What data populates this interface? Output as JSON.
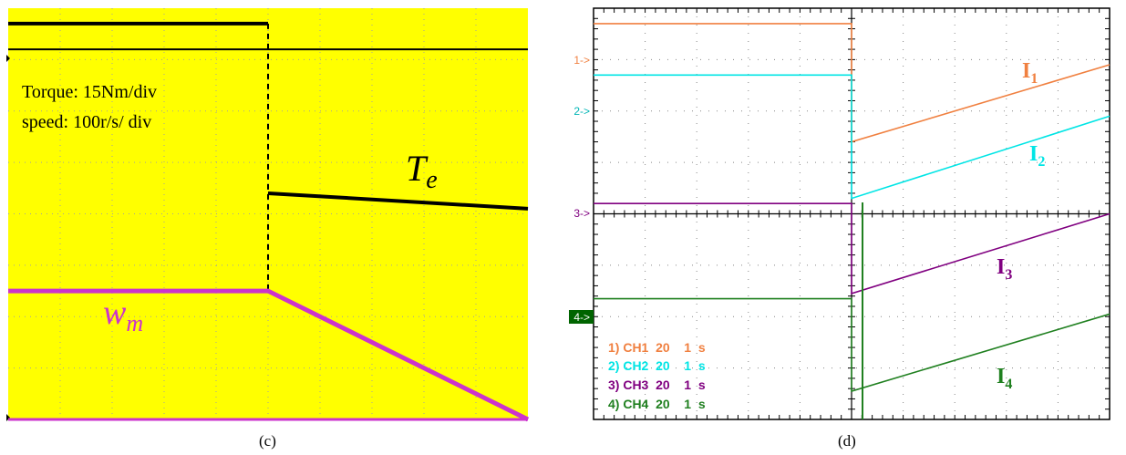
{
  "chart_data": [
    {
      "id": "c",
      "type": "line",
      "caption": "(c)",
      "annotation_lines": [
        "Torque: 15Nm/div",
        "speed: 100r/s/ div"
      ],
      "grid": true,
      "colors": {
        "background": "#ffff00",
        "torque": "#000000",
        "speed": "#cc33cc",
        "grid": "#a0a0a0"
      },
      "x_range": [
        0,
        10
      ],
      "y_range": [
        0,
        8
      ],
      "series": [
        {
          "name": "Tₑ",
          "label_main": "T",
          "label_sub": "e",
          "x": [
            0,
            5,
            5,
            10
          ],
          "y": [
            7.7,
            7.7,
            4.4,
            4.1
          ]
        },
        {
          "name": "wₘ",
          "label_main": "w",
          "label_sub": "m",
          "x": [
            0,
            5,
            10
          ],
          "y": [
            2.5,
            2.5,
            0
          ]
        }
      ],
      "reference_level": 7.2,
      "step_dashed_x": 5
    },
    {
      "id": "d",
      "type": "line",
      "caption": "(d)",
      "grid": true,
      "colors": {
        "background": "#ffffff",
        "grid": "#000000"
      },
      "x_range": [
        0,
        10
      ],
      "y_range": [
        0,
        8
      ],
      "channel_markers": [
        "1->",
        "2->",
        "3->",
        "4->"
      ],
      "legend": [
        {
          "text": "1) CH1  20    1  s",
          "color": "#f08040"
        },
        {
          "text": "2) CH2  20    1  s",
          "color": "#00e5e5"
        },
        {
          "text": "3) CH3  20    1  s",
          "color": "#800080"
        },
        {
          "text": "4) CH4  20    1  s",
          "color": "#208020"
        }
      ],
      "series": [
        {
          "name": "I₁",
          "label_main": "I",
          "label_sub": "1",
          "color": "#f08040",
          "x": [
            0,
            5,
            5,
            10
          ],
          "y": [
            7.7,
            7.7,
            5.4,
            6.9
          ]
        },
        {
          "name": "I₂",
          "label_main": "I",
          "label_sub": "2",
          "color": "#00e5e5",
          "x": [
            0,
            5,
            5,
            10
          ],
          "y": [
            6.7,
            6.7,
            4.3,
            5.9
          ]
        },
        {
          "name": "I₃",
          "label_main": "I",
          "label_sub": "3",
          "color": "#800080",
          "x": [
            0,
            5,
            5,
            10
          ],
          "y": [
            4.2,
            4.2,
            2.45,
            4.0
          ]
        },
        {
          "name": "I₄",
          "label_main": "I",
          "label_sub": "4",
          "color": "#208020",
          "x": [
            0,
            5,
            5,
            10
          ],
          "y": [
            2.35,
            2.35,
            0.55,
            2.05
          ]
        }
      ]
    }
  ]
}
